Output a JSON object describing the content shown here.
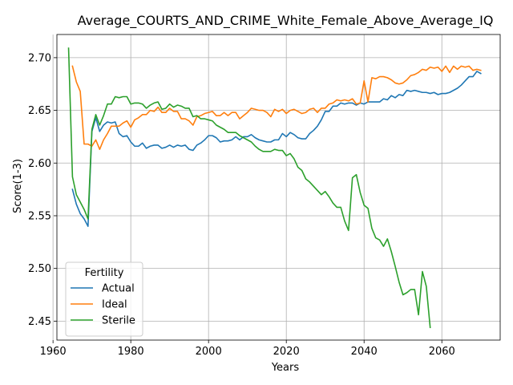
{
  "chart_data": {
    "type": "line",
    "title": "Average_COURTS_AND_CRIME_White_Female_Above_Average_IQ",
    "xlabel": "Years",
    "ylabel": "Score(1-3)",
    "xlim": [
      1961,
      2075
    ],
    "ylim": [
      2.432,
      2.722
    ],
    "xticks": [
      1960,
      1980,
      2000,
      2020,
      2040,
      2060
    ],
    "yticks": [
      2.45,
      2.5,
      2.55,
      2.6,
      2.65,
      2.7
    ],
    "ytick_labels": [
      "2.45",
      "2.50",
      "2.55",
      "2.60",
      "2.65",
      "2.70"
    ],
    "grid": true,
    "legend": {
      "title": "Fertility",
      "placement": "lower-left"
    },
    "series": [
      {
        "name": "Actual",
        "color": "#1f77b4",
        "points": [
          [
            1965,
            2.575
          ],
          [
            1966,
            2.561
          ],
          [
            1967,
            2.552
          ],
          [
            1968,
            2.547
          ],
          [
            1969,
            2.54
          ],
          [
            1970,
            2.63
          ],
          [
            1971,
            2.643
          ],
          [
            1972,
            2.63
          ],
          [
            1973,
            2.636
          ],
          [
            1974,
            2.639
          ],
          [
            1975,
            2.638
          ],
          [
            1976,
            2.639
          ],
          [
            1977,
            2.628
          ],
          [
            1978,
            2.625
          ],
          [
            1979,
            2.626
          ],
          [
            1980,
            2.62
          ],
          [
            1981,
            2.616
          ],
          [
            1982,
            2.616
          ],
          [
            1983,
            2.619
          ],
          [
            1984,
            2.614
          ],
          [
            1985,
            2.616
          ],
          [
            1986,
            2.617
          ],
          [
            1987,
            2.617
          ],
          [
            1988,
            2.614
          ],
          [
            1989,
            2.615
          ],
          [
            1990,
            2.617
          ],
          [
            1991,
            2.615
          ],
          [
            1992,
            2.617
          ],
          [
            1993,
            2.616
          ],
          [
            1994,
            2.617
          ],
          [
            1995,
            2.613
          ],
          [
            1996,
            2.612
          ],
          [
            1997,
            2.617
          ],
          [
            1998,
            2.619
          ],
          [
            1999,
            2.622
          ],
          [
            2000,
            2.626
          ],
          [
            2001,
            2.626
          ],
          [
            2002,
            2.624
          ],
          [
            2003,
            2.62
          ],
          [
            2004,
            2.621
          ],
          [
            2005,
            2.621
          ],
          [
            2006,
            2.622
          ],
          [
            2007,
            2.625
          ],
          [
            2008,
            2.622
          ],
          [
            2009,
            2.625
          ],
          [
            2010,
            2.625
          ],
          [
            2011,
            2.627
          ],
          [
            2012,
            2.624
          ],
          [
            2013,
            2.622
          ],
          [
            2014,
            2.621
          ],
          [
            2015,
            2.62
          ],
          [
            2016,
            2.62
          ],
          [
            2017,
            2.622
          ],
          [
            2018,
            2.622
          ],
          [
            2019,
            2.628
          ],
          [
            2020,
            2.625
          ],
          [
            2021,
            2.629
          ],
          [
            2022,
            2.627
          ],
          [
            2023,
            2.624
          ],
          [
            2024,
            2.623
          ],
          [
            2025,
            2.623
          ],
          [
            2026,
            2.628
          ],
          [
            2027,
            2.631
          ],
          [
            2028,
            2.635
          ],
          [
            2029,
            2.641
          ],
          [
            2030,
            2.649
          ],
          [
            2031,
            2.649
          ],
          [
            2032,
            2.654
          ],
          [
            2033,
            2.654
          ],
          [
            2034,
            2.657
          ],
          [
            2035,
            2.656
          ],
          [
            2036,
            2.657
          ],
          [
            2037,
            2.657
          ],
          [
            2038,
            2.655
          ],
          [
            2039,
            2.657
          ],
          [
            2040,
            2.656
          ],
          [
            2041,
            2.658
          ],
          [
            2042,
            2.658
          ],
          [
            2043,
            2.658
          ],
          [
            2044,
            2.658
          ],
          [
            2045,
            2.661
          ],
          [
            2046,
            2.66
          ],
          [
            2047,
            2.664
          ],
          [
            2048,
            2.662
          ],
          [
            2049,
            2.665
          ],
          [
            2050,
            2.664
          ],
          [
            2051,
            2.669
          ],
          [
            2052,
            2.668
          ],
          [
            2053,
            2.669
          ],
          [
            2054,
            2.668
          ],
          [
            2055,
            2.667
          ],
          [
            2056,
            2.667
          ],
          [
            2057,
            2.666
          ],
          [
            2058,
            2.667
          ],
          [
            2059,
            2.665
          ],
          [
            2060,
            2.666
          ],
          [
            2061,
            2.666
          ],
          [
            2062,
            2.667
          ],
          [
            2063,
            2.669
          ],
          [
            2064,
            2.671
          ],
          [
            2065,
            2.674
          ],
          [
            2066,
            2.678
          ],
          [
            2067,
            2.682
          ],
          [
            2068,
            2.682
          ],
          [
            2069,
            2.687
          ],
          [
            2070,
            2.685
          ]
        ]
      },
      {
        "name": "Ideal",
        "color": "#ff7f0e",
        "points": [
          [
            1965,
            2.692
          ],
          [
            1966,
            2.677
          ],
          [
            1967,
            2.668
          ],
          [
            1968,
            2.618
          ],
          [
            1969,
            2.618
          ],
          [
            1970,
            2.616
          ],
          [
            1971,
            2.622
          ],
          [
            1972,
            2.613
          ],
          [
            1973,
            2.622
          ],
          [
            1974,
            2.628
          ],
          [
            1975,
            2.635
          ],
          [
            1976,
            2.635
          ],
          [
            1977,
            2.635
          ],
          [
            1978,
            2.638
          ],
          [
            1979,
            2.64
          ],
          [
            1980,
            2.634
          ],
          [
            1981,
            2.641
          ],
          [
            1982,
            2.643
          ],
          [
            1983,
            2.646
          ],
          [
            1984,
            2.646
          ],
          [
            1985,
            2.65
          ],
          [
            1986,
            2.649
          ],
          [
            1987,
            2.653
          ],
          [
            1988,
            2.648
          ],
          [
            1989,
            2.648
          ],
          [
            1990,
            2.652
          ],
          [
            1991,
            2.649
          ],
          [
            1992,
            2.649
          ],
          [
            1993,
            2.642
          ],
          [
            1994,
            2.642
          ],
          [
            1995,
            2.64
          ],
          [
            1996,
            2.636
          ],
          [
            1997,
            2.644
          ],
          [
            1998,
            2.645
          ],
          [
            1999,
            2.647
          ],
          [
            2000,
            2.648
          ],
          [
            2001,
            2.649
          ],
          [
            2002,
            2.645
          ],
          [
            2003,
            2.645
          ],
          [
            2004,
            2.648
          ],
          [
            2005,
            2.645
          ],
          [
            2006,
            2.648
          ],
          [
            2007,
            2.648
          ],
          [
            2008,
            2.642
          ],
          [
            2009,
            2.645
          ],
          [
            2010,
            2.648
          ],
          [
            2011,
            2.652
          ],
          [
            2012,
            2.651
          ],
          [
            2013,
            2.65
          ],
          [
            2014,
            2.65
          ],
          [
            2015,
            2.648
          ],
          [
            2016,
            2.644
          ],
          [
            2017,
            2.651
          ],
          [
            2018,
            2.649
          ],
          [
            2019,
            2.651
          ],
          [
            2020,
            2.647
          ],
          [
            2021,
            2.65
          ],
          [
            2022,
            2.651
          ],
          [
            2023,
            2.649
          ],
          [
            2024,
            2.647
          ],
          [
            2025,
            2.648
          ],
          [
            2026,
            2.651
          ],
          [
            2027,
            2.652
          ],
          [
            2028,
            2.648
          ],
          [
            2029,
            2.652
          ],
          [
            2030,
            2.652
          ],
          [
            2031,
            2.656
          ],
          [
            2032,
            2.657
          ],
          [
            2033,
            2.66
          ],
          [
            2034,
            2.659
          ],
          [
            2035,
            2.66
          ],
          [
            2036,
            2.659
          ],
          [
            2037,
            2.661
          ],
          [
            2038,
            2.656
          ],
          [
            2039,
            2.657
          ],
          [
            2040,
            2.678
          ],
          [
            2041,
            2.658
          ],
          [
            2042,
            2.681
          ],
          [
            2043,
            2.68
          ],
          [
            2044,
            2.682
          ],
          [
            2045,
            2.682
          ],
          [
            2046,
            2.681
          ],
          [
            2047,
            2.679
          ],
          [
            2048,
            2.676
          ],
          [
            2049,
            2.675
          ],
          [
            2050,
            2.676
          ],
          [
            2051,
            2.679
          ],
          [
            2052,
            2.683
          ],
          [
            2053,
            2.684
          ],
          [
            2054,
            2.686
          ],
          [
            2055,
            2.689
          ],
          [
            2056,
            2.688
          ],
          [
            2057,
            2.691
          ],
          [
            2058,
            2.69
          ],
          [
            2059,
            2.691
          ],
          [
            2060,
            2.687
          ],
          [
            2061,
            2.692
          ],
          [
            2062,
            2.686
          ],
          [
            2063,
            2.692
          ],
          [
            2064,
            2.689
          ],
          [
            2065,
            2.692
          ],
          [
            2066,
            2.691
          ],
          [
            2067,
            2.692
          ],
          [
            2068,
            2.688
          ],
          [
            2069,
            2.689
          ],
          [
            2070,
            2.688
          ]
        ]
      },
      {
        "name": "Sterile",
        "color": "#2ca02c",
        "points": [
          [
            1964,
            2.709
          ],
          [
            1965,
            2.587
          ],
          [
            1966,
            2.57
          ],
          [
            1967,
            2.563
          ],
          [
            1968,
            2.556
          ],
          [
            1969,
            2.547
          ],
          [
            1970,
            2.632
          ],
          [
            1971,
            2.646
          ],
          [
            1972,
            2.636
          ],
          [
            1973,
            2.645
          ],
          [
            1974,
            2.656
          ],
          [
            1975,
            2.656
          ],
          [
            1976,
            2.663
          ],
          [
            1977,
            2.662
          ],
          [
            1978,
            2.663
          ],
          [
            1979,
            2.663
          ],
          [
            1980,
            2.656
          ],
          [
            1981,
            2.657
          ],
          [
            1982,
            2.657
          ],
          [
            1983,
            2.656
          ],
          [
            1984,
            2.652
          ],
          [
            1985,
            2.655
          ],
          [
            1986,
            2.657
          ],
          [
            1987,
            2.658
          ],
          [
            1988,
            2.651
          ],
          [
            1989,
            2.652
          ],
          [
            1990,
            2.656
          ],
          [
            1991,
            2.653
          ],
          [
            1992,
            2.655
          ],
          [
            1993,
            2.654
          ],
          [
            1994,
            2.652
          ],
          [
            1995,
            2.652
          ],
          [
            1996,
            2.644
          ],
          [
            1997,
            2.645
          ],
          [
            1998,
            2.642
          ],
          [
            1999,
            2.642
          ],
          [
            2000,
            2.641
          ],
          [
            2001,
            2.64
          ],
          [
            2002,
            2.636
          ],
          [
            2003,
            2.634
          ],
          [
            2004,
            2.632
          ],
          [
            2005,
            2.629
          ],
          [
            2006,
            2.629
          ],
          [
            2007,
            2.629
          ],
          [
            2008,
            2.626
          ],
          [
            2009,
            2.624
          ],
          [
            2010,
            2.622
          ],
          [
            2011,
            2.62
          ],
          [
            2012,
            2.616
          ],
          [
            2013,
            2.613
          ],
          [
            2014,
            2.611
          ],
          [
            2015,
            2.611
          ],
          [
            2016,
            2.611
          ],
          [
            2017,
            2.613
          ],
          [
            2018,
            2.612
          ],
          [
            2019,
            2.612
          ],
          [
            2020,
            2.607
          ],
          [
            2021,
            2.609
          ],
          [
            2022,
            2.604
          ],
          [
            2023,
            2.596
          ],
          [
            2024,
            2.593
          ],
          [
            2025,
            2.585
          ],
          [
            2026,
            2.582
          ],
          [
            2027,
            2.578
          ],
          [
            2028,
            2.574
          ],
          [
            2029,
            2.57
          ],
          [
            2030,
            2.573
          ],
          [
            2031,
            2.568
          ],
          [
            2032,
            2.562
          ],
          [
            2033,
            2.558
          ],
          [
            2034,
            2.558
          ],
          [
            2035,
            2.545
          ],
          [
            2036,
            2.536
          ],
          [
            2037,
            2.586
          ],
          [
            2038,
            2.589
          ],
          [
            2039,
            2.572
          ],
          [
            2040,
            2.56
          ],
          [
            2041,
            2.557
          ],
          [
            2042,
            2.538
          ],
          [
            2043,
            2.529
          ],
          [
            2044,
            2.527
          ],
          [
            2045,
            2.521
          ],
          [
            2046,
            2.528
          ],
          [
            2047,
            2.516
          ],
          [
            2048,
            2.502
          ],
          [
            2049,
            2.487
          ],
          [
            2050,
            2.475
          ],
          [
            2051,
            2.477
          ],
          [
            2052,
            2.48
          ],
          [
            2053,
            2.48
          ],
          [
            2054,
            2.456
          ],
          [
            2055,
            2.497
          ],
          [
            2056,
            2.483
          ],
          [
            2057,
            2.444
          ]
        ]
      }
    ]
  }
}
